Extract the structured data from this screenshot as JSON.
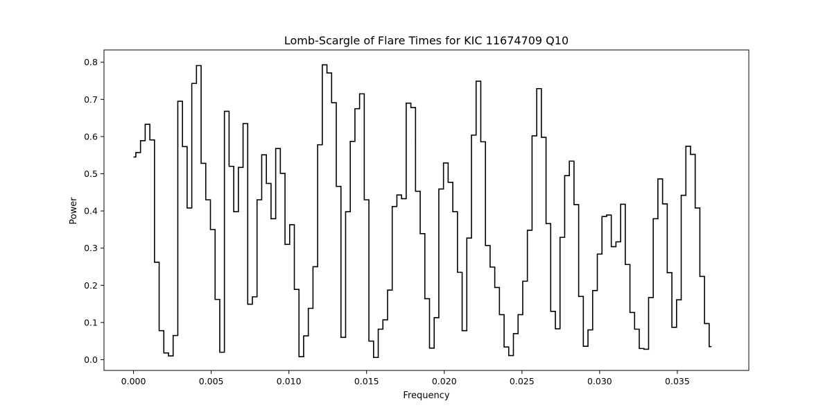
{
  "chart_data": {
    "type": "line",
    "drawstyle": "steps-mid",
    "title": "Lomb-Scargle of Flare Times for KIC 11674709 Q10",
    "xlabel": "Frequency",
    "ylabel": "Power",
    "xlim": [
      -0.0019,
      0.0396
    ],
    "ylim": [
      -0.029,
      0.833
    ],
    "xticks": [
      0.0,
      0.005,
      0.01,
      0.015,
      0.02,
      0.025,
      0.03,
      0.035
    ],
    "xtick_labels": [
      "0.000",
      "0.005",
      "0.010",
      "0.015",
      "0.020",
      "0.025",
      "0.030",
      "0.035"
    ],
    "yticks": [
      0.0,
      0.1,
      0.2,
      0.3,
      0.4,
      0.5,
      0.6,
      0.7,
      0.8
    ],
    "ytick_labels": [
      "0.0",
      "0.1",
      "0.2",
      "0.3",
      "0.4",
      "0.5",
      "0.6",
      "0.7",
      "0.8"
    ],
    "grid": false,
    "legend": false,
    "line_color": "#000000",
    "series": [
      {
        "x_start": 0.0,
        "x_step": 0.0003,
        "values": [
          0.545,
          0.557,
          0.589,
          0.633,
          0.591,
          0.262,
          0.078,
          0.018,
          0.01,
          0.065,
          0.695,
          0.573,
          0.408,
          0.743,
          0.791,
          0.528,
          0.43,
          0.35,
          0.162,
          0.02,
          0.668,
          0.52,
          0.398,
          0.517,
          0.635,
          0.149,
          0.169,
          0.43,
          0.551,
          0.474,
          0.379,
          0.568,
          0.501,
          0.31,
          0.363,
          0.189,
          0.008,
          0.064,
          0.138,
          0.25,
          0.578,
          0.793,
          0.771,
          0.691,
          0.466,
          0.06,
          0.398,
          0.587,
          0.675,
          0.715,
          0.43,
          0.05,
          0.006,
          0.082,
          0.107,
          0.187,
          0.412,
          0.443,
          0.433,
          0.69,
          0.678,
          0.453,
          0.339,
          0.164,
          0.031,
          0.113,
          0.459,
          0.529,
          0.477,
          0.398,
          0.235,
          0.078,
          0.327,
          0.604,
          0.749,
          0.586,
          0.307,
          0.249,
          0.194,
          0.121,
          0.034,
          0.011,
          0.07,
          0.121,
          0.211,
          0.348,
          0.602,
          0.729,
          0.598,
          0.366,
          0.13,
          0.083,
          0.329,
          0.495,
          0.534,
          0.417,
          0.17,
          0.036,
          0.08,
          0.186,
          0.284,
          0.385,
          0.389,
          0.304,
          0.317,
          0.418,
          0.256,
          0.127,
          0.082,
          0.03,
          0.028,
          0.167,
          0.379,
          0.486,
          0.419,
          0.234,
          0.087,
          0.161,
          0.442,
          0.574,
          0.552,
          0.408,
          0.224,
          0.097,
          0.035
        ]
      }
    ]
  }
}
